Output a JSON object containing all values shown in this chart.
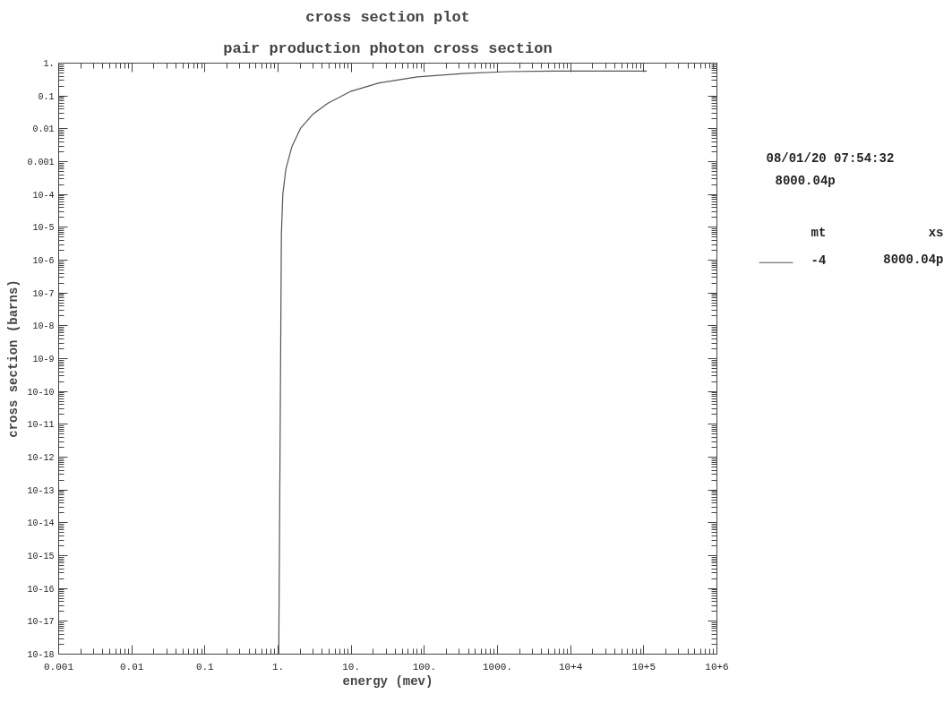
{
  "chart_data": {
    "type": "line",
    "title": "cross section plot",
    "subtitle": "pair production photon cross section",
    "xlabel": "energy (mev)",
    "ylabel": "cross section (barns)",
    "log": "xy",
    "grid": false,
    "legend": "right",
    "legend_title": "mt",
    "xlim": [
      0.001,
      1000000
    ],
    "ylim": [
      1e-18,
      1
    ],
    "xticks": [
      {
        "value": 0.001,
        "label": "0.001"
      },
      {
        "value": 0.01,
        "label": "0.01"
      },
      {
        "value": 0.1,
        "label": "0.1"
      },
      {
        "value": 1,
        "label": "1."
      },
      {
        "value": 10,
        "label": "10."
      },
      {
        "value": 100,
        "label": "100."
      },
      {
        "value": 1000,
        "label": "1000."
      },
      {
        "value": 10000,
        "label": "10+4"
      },
      {
        "value": 100000,
        "label": "10+5"
      },
      {
        "value": 1000000,
        "label": "10+6"
      }
    ],
    "yticks": [
      {
        "value": 1e-18,
        "label": "10-18"
      },
      {
        "value": 1e-17,
        "label": "10-17"
      },
      {
        "value": 1e-16,
        "label": "10-16"
      },
      {
        "value": 1e-15,
        "label": "10-15"
      },
      {
        "value": 1e-14,
        "label": "10-14"
      },
      {
        "value": 1e-13,
        "label": "10-13"
      },
      {
        "value": 1e-12,
        "label": "10-12"
      },
      {
        "value": 1e-11,
        "label": "10-11"
      },
      {
        "value": 1e-10,
        "label": "10-10"
      },
      {
        "value": 1e-09,
        "label": "10-9"
      },
      {
        "value": 1e-08,
        "label": "10-8"
      },
      {
        "value": 1e-07,
        "label": "10-7"
      },
      {
        "value": 1e-06,
        "label": "10-6"
      },
      {
        "value": 1e-05,
        "label": "10-5"
      },
      {
        "value": 0.0001,
        "label": "10-4"
      },
      {
        "value": 0.001,
        "label": "0.001"
      },
      {
        "value": 0.01,
        "label": "0.01"
      },
      {
        "value": 0.1,
        "label": "0.1"
      },
      {
        "value": 1,
        "label": "1."
      }
    ],
    "series": [
      {
        "name": "-4",
        "color": "#555555",
        "x": [
          1.022,
          1.11,
          1.16,
          1.28,
          1.54,
          2.04,
          3.0,
          4.8,
          10,
          24,
          80,
          330,
          1350,
          5600,
          110000
        ],
        "values": [
          1e-18,
          6e-06,
          0.0001,
          0.0006,
          0.0028,
          0.0105,
          0.028,
          0.06,
          0.14,
          0.25,
          0.38,
          0.48,
          0.55,
          0.57,
          0.57
        ]
      }
    ],
    "annotations": [
      "08/01/20 07:54:32",
      "8000.04p",
      "xs",
      "8000.04p"
    ]
  }
}
